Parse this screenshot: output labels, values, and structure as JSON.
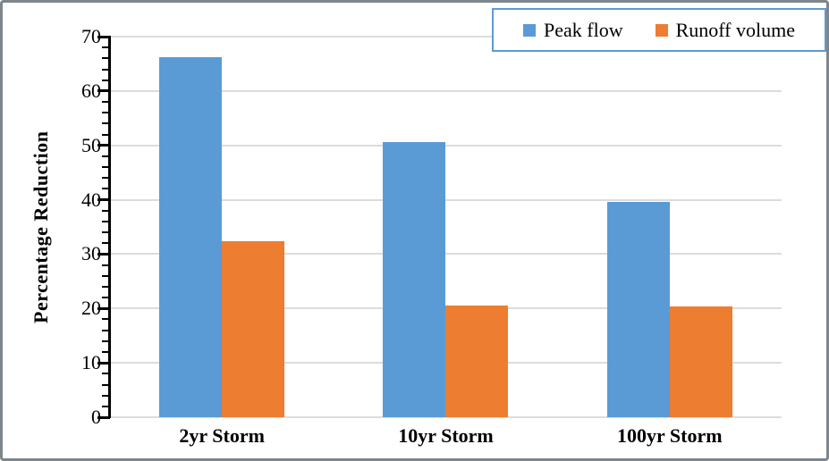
{
  "chart_data": {
    "type": "bar",
    "title": "",
    "categories": [
      "2yr Storm",
      "10yr Storm",
      "100yr Storm"
    ],
    "series": [
      {
        "name": "Peak flow",
        "color": "#5B9BD5",
        "values": [
          66.2,
          50.6,
          39.6
        ]
      },
      {
        "name": "Runoff volume",
        "color": "#ED7D31",
        "values": [
          32.4,
          20.6,
          20.4
        ]
      }
    ],
    "xlabel": "",
    "ylabel": "Percentage Reduction",
    "ylim": [
      0,
      70
    ],
    "yticks": [
      0,
      10,
      20,
      30,
      40,
      50,
      60,
      70
    ],
    "minor_tick_step": 2,
    "grid": "horizontal-major",
    "gridline_color": "#DCDCDC",
    "legend_position": "top-right",
    "legend_border_color": "#5B9BD5",
    "axis_color": "#000000",
    "frame_border_color": "#7d868c"
  }
}
